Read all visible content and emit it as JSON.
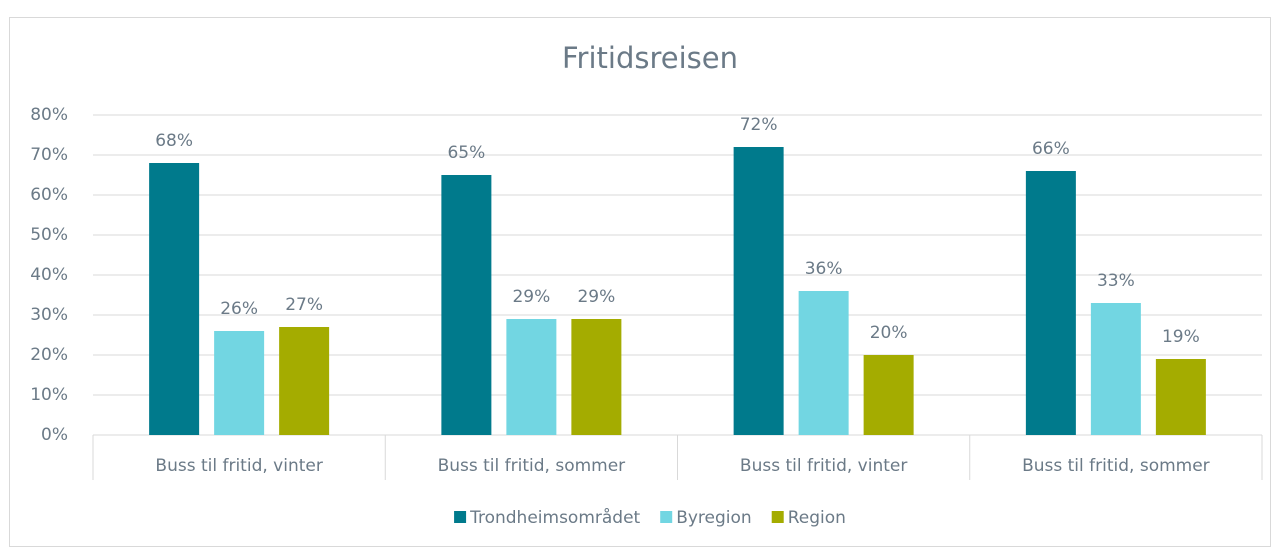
{
  "chart_data": {
    "type": "bar",
    "title": "Fritidsreisen",
    "categories": [
      "Buss til fritid, vinter",
      "Buss til fritid, sommer",
      "Buss til fritid, vinter",
      "Buss til fritid, sommer"
    ],
    "series": [
      {
        "name": "Trondheimsområdet",
        "color": "#007a8c",
        "values": [
          68,
          65,
          72,
          66
        ],
        "value_labels": [
          "68%",
          "65%",
          "72%",
          "66%"
        ]
      },
      {
        "name": "Byregion",
        "color": "#72d6e2",
        "values": [
          26,
          29,
          36,
          33
        ],
        "value_labels": [
          "26%",
          "29%",
          "36%",
          "33%"
        ]
      },
      {
        "name": "Region",
        "color": "#a4ac00",
        "values": [
          27,
          29,
          20,
          19
        ],
        "value_labels": [
          "27%",
          "29%",
          "20%",
          "19%"
        ]
      }
    ],
    "ylim": [
      0,
      80
    ],
    "yticks": [
      {
        "value": 0,
        "label": "0%"
      },
      {
        "value": 10,
        "label": "10%"
      },
      {
        "value": 20,
        "label": "20%"
      },
      {
        "value": 30,
        "label": "30%"
      },
      {
        "value": 40,
        "label": "40%"
      },
      {
        "value": 50,
        "label": "50%"
      },
      {
        "value": 60,
        "label": "60%"
      },
      {
        "value": 70,
        "label": "70%"
      },
      {
        "value": 80,
        "label": "80%"
      }
    ],
    "grid": true,
    "legend": "bottom"
  }
}
